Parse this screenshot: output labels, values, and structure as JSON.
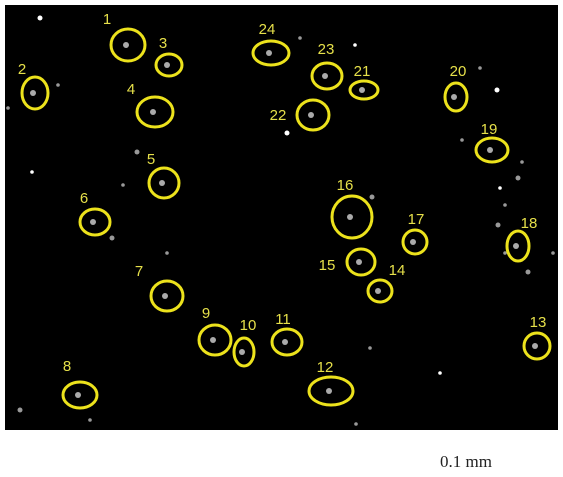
{
  "image": {
    "labels": [
      "1",
      "2",
      "3",
      "4",
      "5",
      "6",
      "7",
      "8",
      "9",
      "10",
      "11",
      "12",
      "13",
      "14",
      "15",
      "16",
      "17",
      "18",
      "19",
      "20",
      "21",
      "22",
      "23",
      "24"
    ]
  },
  "scale_bar": {
    "label": "0.1 mm"
  }
}
